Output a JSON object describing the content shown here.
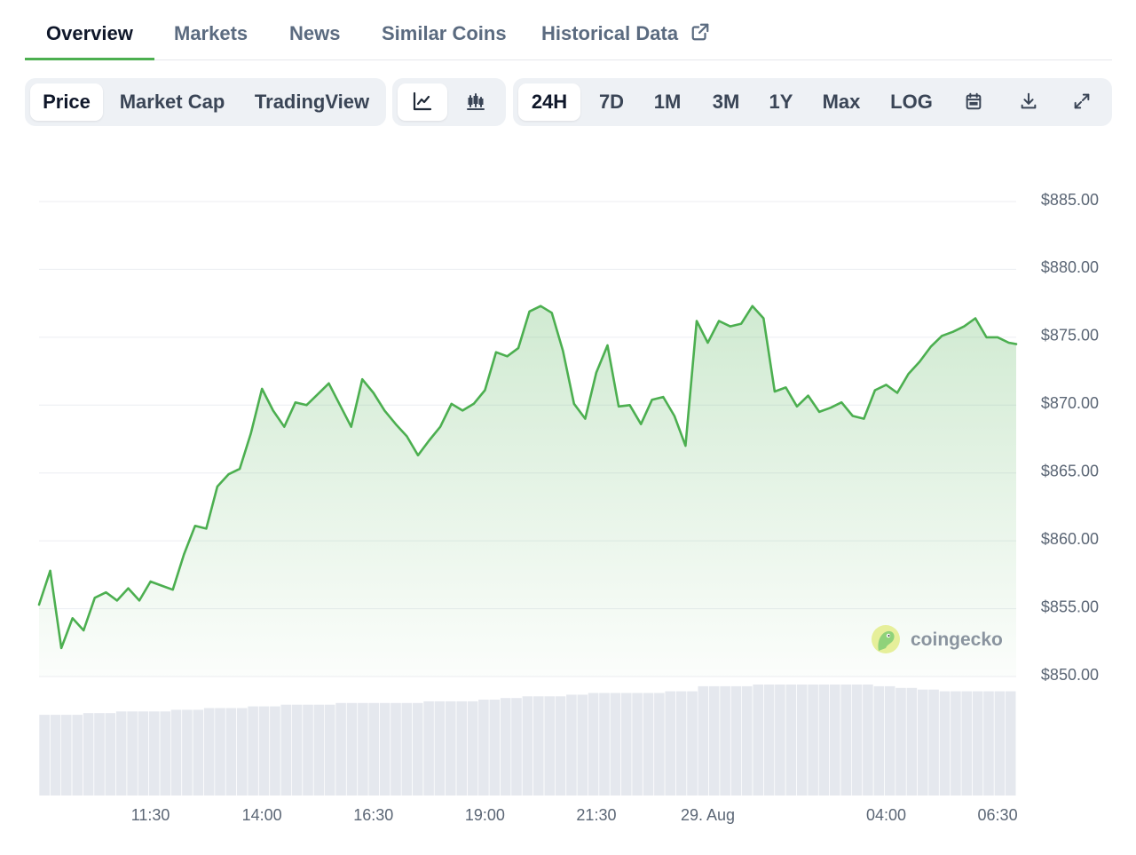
{
  "tabs": [
    {
      "label": "Overview",
      "active": true
    },
    {
      "label": "Markets"
    },
    {
      "label": "News"
    },
    {
      "label": "Similar Coins"
    },
    {
      "label": "Historical Data"
    }
  ],
  "toolbar": {
    "data_types": [
      "Price",
      "Market Cap",
      "TradingView"
    ],
    "data_type_active": "Price",
    "chart_styles": [
      "line-chart-icon",
      "candlestick-icon"
    ],
    "chart_style_active": "line-chart-icon",
    "ranges": [
      "24H",
      "7D",
      "1M",
      "3M",
      "1Y",
      "Max",
      "LOG"
    ],
    "range_active": "24H",
    "actions": [
      "calendar-icon",
      "download-icon",
      "fullscreen-icon"
    ]
  },
  "watermark": "coingecko",
  "colors": {
    "accent": "#4caf50",
    "line": "#4caf50",
    "volume": "#e5e8ee",
    "toolbar_bg": "#eef1f5"
  },
  "chart_data": {
    "type": "line",
    "title": "",
    "xlabel": "",
    "ylabel": "",
    "x_range": [
      "09:00",
      "06:55"
    ],
    "ylim": [
      850,
      885
    ],
    "yticks": [
      885,
      880,
      875,
      870,
      865,
      860,
      855,
      850
    ],
    "ytick_labels": [
      "$885.00",
      "$880.00",
      "$875.00",
      "$870.00",
      "$865.00",
      "$860.00",
      "$855.00",
      "$850.00"
    ],
    "xticks": [
      "11:30",
      "14:00",
      "16:30",
      "19:00",
      "21:30",
      "29. Aug",
      "04:00",
      "06:30"
    ],
    "xtick_positions": [
      "11:30",
      "14:00",
      "16:30",
      "19:00",
      "21:30",
      "00:00",
      "04:00",
      "06:30"
    ],
    "grid": true,
    "series": [
      {
        "x": [
          "09:00",
          "09:15",
          "09:30",
          "09:45",
          "10:00",
          "10:15",
          "10:30",
          "10:45",
          "11:00",
          "11:15",
          "11:30",
          "11:45",
          "12:00",
          "12:15",
          "12:30",
          "12:45",
          "13:00",
          "13:15",
          "13:30",
          "13:45",
          "14:00",
          "14:15",
          "14:30",
          "14:45",
          "15:00",
          "15:15",
          "15:30",
          "15:45",
          "16:00",
          "16:15",
          "16:30",
          "16:45",
          "17:00",
          "17:15",
          "17:30",
          "17:45",
          "18:00",
          "18:15",
          "18:30",
          "18:45",
          "19:00",
          "19:15",
          "19:30",
          "19:45",
          "20:00",
          "20:15",
          "20:30",
          "20:45",
          "21:00",
          "21:15",
          "21:30",
          "21:45",
          "22:00",
          "22:15",
          "22:30",
          "22:45",
          "23:00",
          "23:15",
          "23:30",
          "23:45",
          "00:00",
          "00:15",
          "00:30",
          "00:45",
          "01:00",
          "01:15",
          "01:30",
          "01:45",
          "02:00",
          "02:15",
          "02:30",
          "02:45",
          "03:00",
          "03:15",
          "03:30",
          "03:45",
          "04:00",
          "04:15",
          "04:30",
          "04:45",
          "05:00",
          "05:15",
          "05:30",
          "05:45",
          "06:00",
          "06:15",
          "06:30",
          "06:45",
          "06:55"
        ],
        "values": [
          855.3,
          857.8,
          852.1,
          854.3,
          853.4,
          855.8,
          856.2,
          855.6,
          856.5,
          855.6,
          857.0,
          856.7,
          856.4,
          859.0,
          861.1,
          860.9,
          864.0,
          864.9,
          865.3,
          867.9,
          871.2,
          869.6,
          868.4,
          870.2,
          870.0,
          870.8,
          871.6,
          870.0,
          868.4,
          871.9,
          870.9,
          869.6,
          868.6,
          867.7,
          866.3,
          867.4,
          868.4,
          870.1,
          869.6,
          870.1,
          871.1,
          873.9,
          873.6,
          874.2,
          876.9,
          877.3,
          876.8,
          874.0,
          870.1,
          869.0,
          872.4,
          874.4,
          869.9,
          870.0,
          868.6,
          870.4,
          870.6,
          869.2,
          867.0,
          876.2,
          874.6,
          876.2,
          875.8,
          876.0,
          877.3,
          876.4,
          871.0,
          871.3,
          869.9,
          870.7,
          869.5,
          869.8,
          870.2,
          869.2,
          869.0,
          871.1,
          871.5,
          870.9,
          872.3,
          873.2,
          874.3,
          875.1,
          875.4,
          875.8,
          876.4,
          875.0,
          875.0,
          874.6,
          874.5
        ]
      }
    ],
    "volume": [
      48,
      48,
      48,
      48,
      49,
      49,
      49,
      50,
      50,
      50,
      50,
      50,
      51,
      51,
      51,
      52,
      52,
      52,
      52,
      53,
      53,
      53,
      54,
      54,
      54,
      54,
      54,
      55,
      55,
      55,
      55,
      55,
      55,
      55,
      55,
      56,
      56,
      56,
      56,
      56,
      57,
      57,
      58,
      58,
      59,
      59,
      59,
      59,
      60,
      60,
      61,
      61,
      61,
      61,
      61,
      61,
      61,
      62,
      62,
      62,
      65,
      65,
      65,
      65,
      65,
      66,
      66,
      66,
      66,
      66,
      66,
      66,
      66,
      66,
      66,
      66,
      65,
      65,
      64,
      64,
      63,
      63,
      62,
      62,
      62,
      62,
      62,
      62,
      62
    ]
  }
}
